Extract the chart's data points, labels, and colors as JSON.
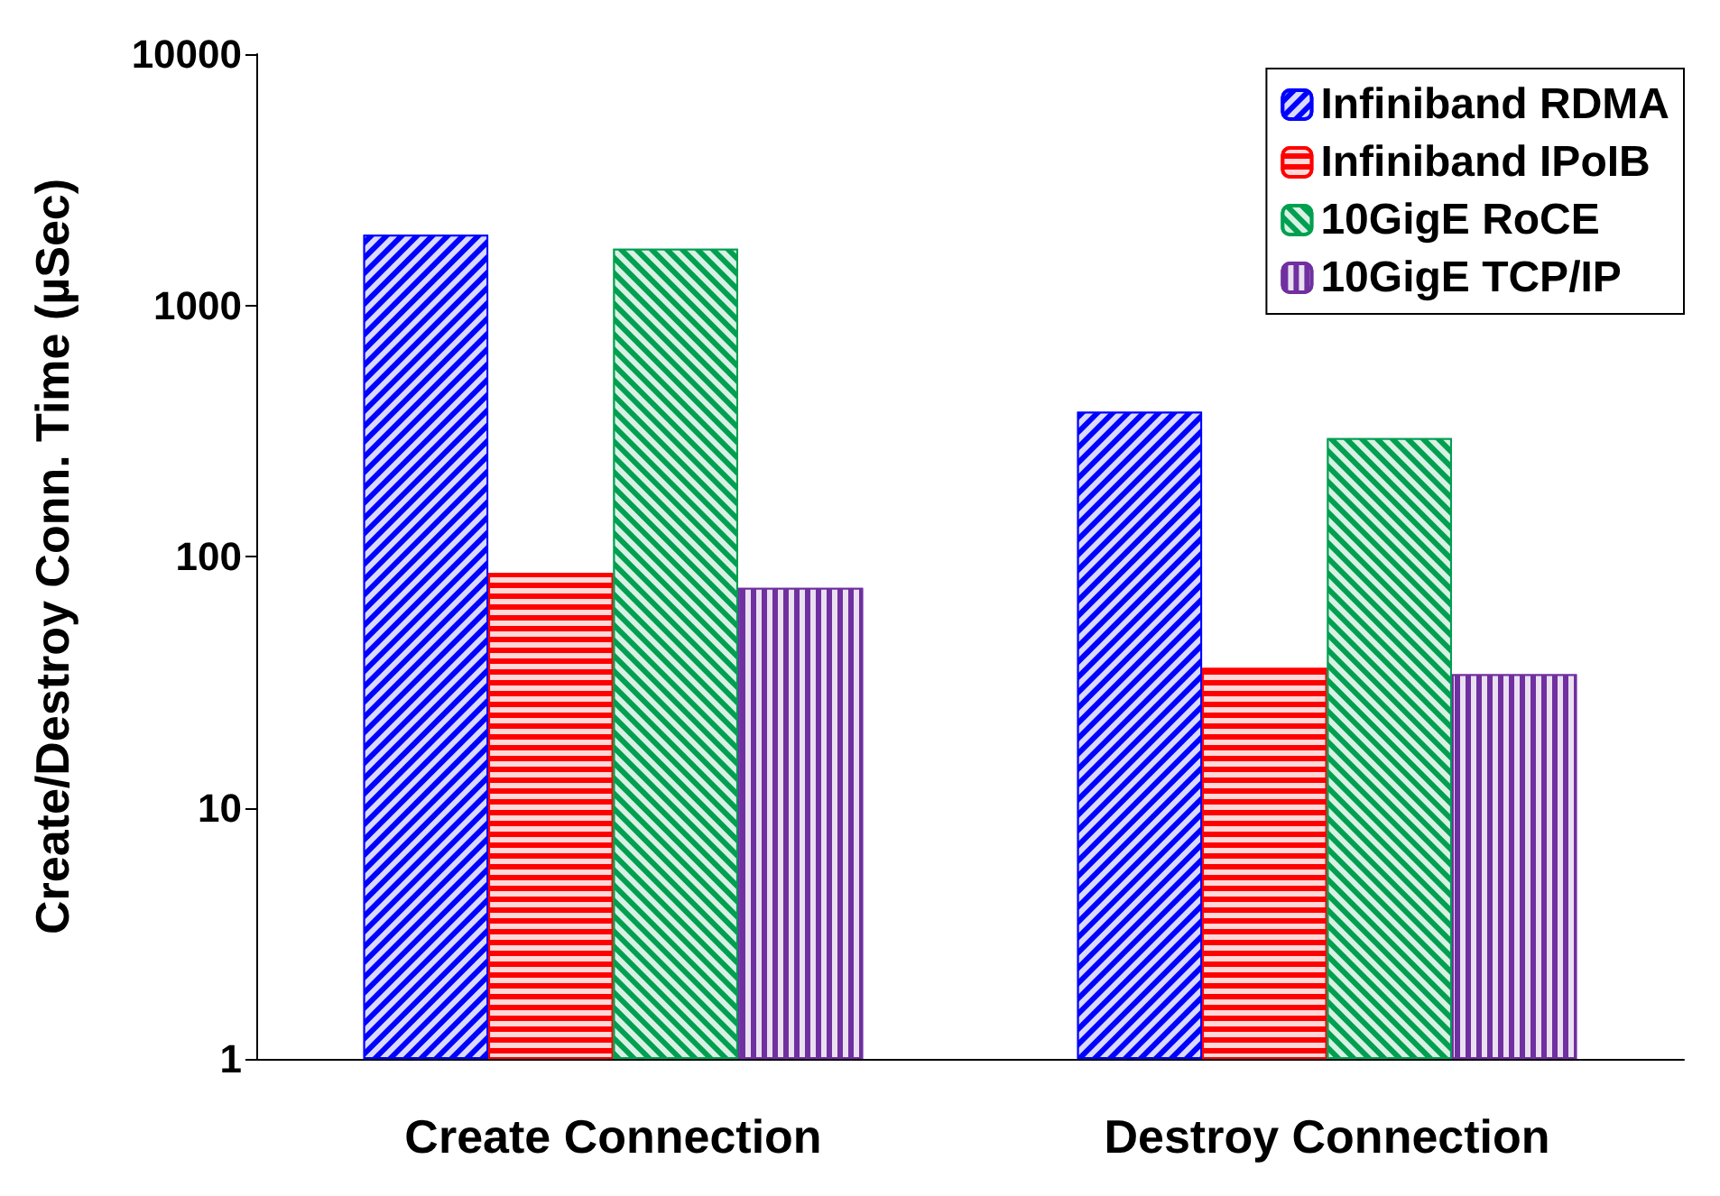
{
  "chart_data": {
    "type": "bar",
    "ylabel": "Create/Destroy Conn. Time (µSec)",
    "categories": [
      "Create Connection",
      "Destroy Connection"
    ],
    "series": [
      {
        "name": "Infiniband RDMA",
        "color": "#0000ff",
        "values": [
          1910,
          377
        ]
      },
      {
        "name": "Infiniband IPoIB",
        "color": "#ff0000",
        "values": [
          86,
          36
        ]
      },
      {
        "name": "10GigE RoCE",
        "color": "#00a050",
        "values": [
          1680,
          296
        ]
      },
      {
        "name": "10GigE TCP/IP",
        "color": "#7030a0",
        "values": [
          75,
          34
        ]
      }
    ],
    "log": "y",
    "ylim": [
      1,
      10000
    ],
    "yticks": [
      1,
      10,
      100,
      1000,
      10000
    ],
    "grid": false,
    "legend": "top right"
  }
}
